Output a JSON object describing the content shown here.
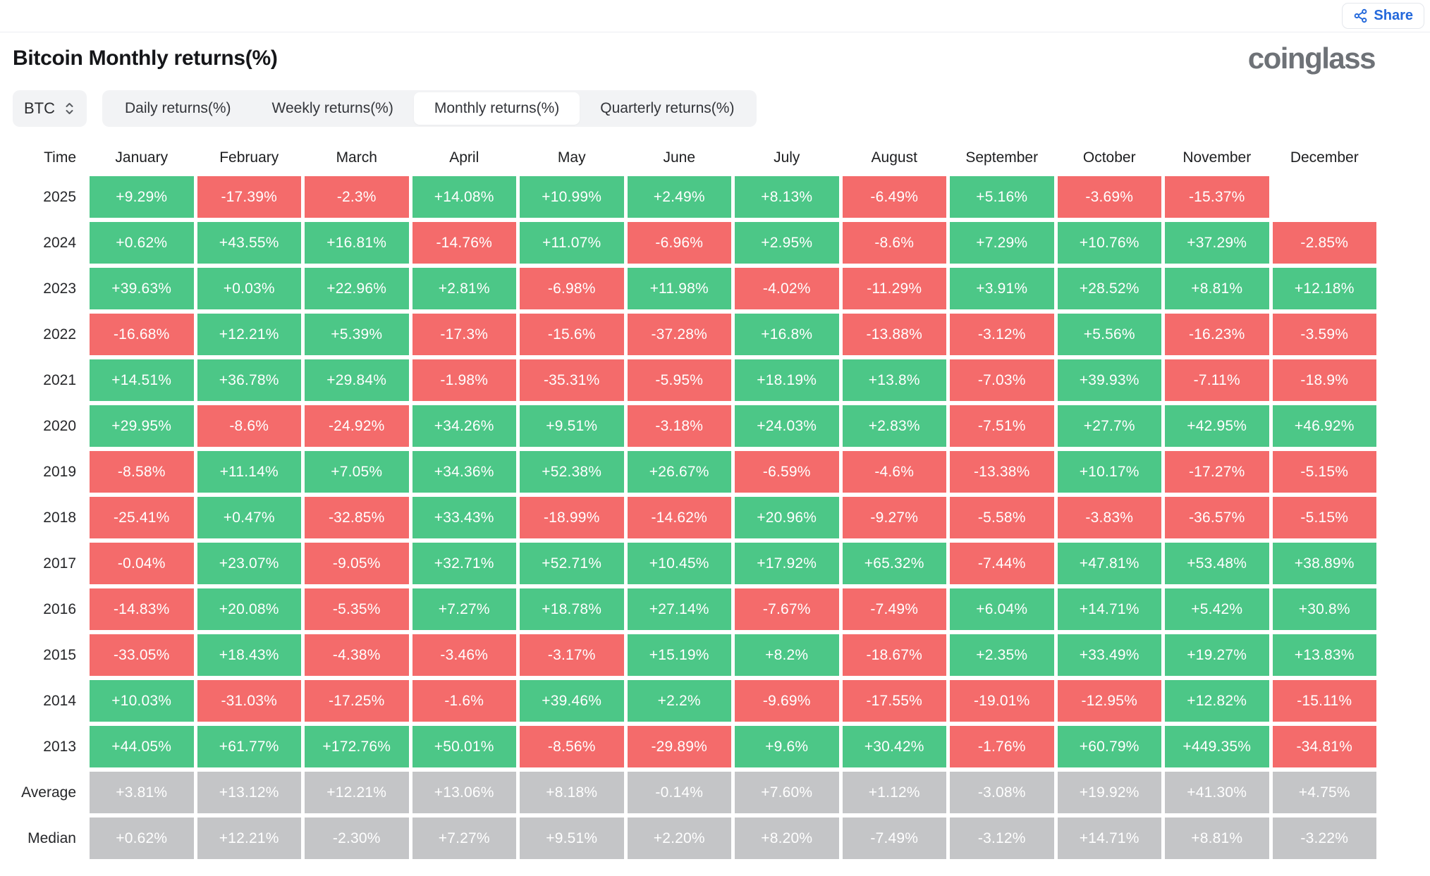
{
  "header": {
    "share_label": "Share",
    "brand": "coinglass",
    "title": "Bitcoin Monthly returns(%)"
  },
  "toolbar": {
    "symbol": "BTC",
    "tabs": [
      {
        "label": "Daily returns(%)",
        "active": false
      },
      {
        "label": "Weekly returns(%)",
        "active": false
      },
      {
        "label": "Monthly returns(%)",
        "active": true
      },
      {
        "label": "Quarterly returns(%)",
        "active": false
      }
    ]
  },
  "colors": {
    "positive": "#4cc787",
    "negative": "#f46b6b",
    "summary": "#c4c5c7",
    "accent_blue": "#2368db"
  },
  "chart_data": {
    "type": "table",
    "title": "Bitcoin Monthly returns(%)",
    "columns": [
      "Time",
      "January",
      "February",
      "March",
      "April",
      "May",
      "June",
      "July",
      "August",
      "September",
      "October",
      "November",
      "December"
    ],
    "rows": [
      {
        "label": "2025",
        "summary": false,
        "values": [
          "+9.29%",
          "-17.39%",
          "-2.3%",
          "+14.08%",
          "+10.99%",
          "+2.49%",
          "+8.13%",
          "-6.49%",
          "+5.16%",
          "-3.69%",
          "-15.37%",
          ""
        ]
      },
      {
        "label": "2024",
        "summary": false,
        "values": [
          "+0.62%",
          "+43.55%",
          "+16.81%",
          "-14.76%",
          "+11.07%",
          "-6.96%",
          "+2.95%",
          "-8.6%",
          "+7.29%",
          "+10.76%",
          "+37.29%",
          "-2.85%"
        ]
      },
      {
        "label": "2023",
        "summary": false,
        "values": [
          "+39.63%",
          "+0.03%",
          "+22.96%",
          "+2.81%",
          "-6.98%",
          "+11.98%",
          "-4.02%",
          "-11.29%",
          "+3.91%",
          "+28.52%",
          "+8.81%",
          "+12.18%"
        ]
      },
      {
        "label": "2022",
        "summary": false,
        "values": [
          "-16.68%",
          "+12.21%",
          "+5.39%",
          "-17.3%",
          "-15.6%",
          "-37.28%",
          "+16.8%",
          "-13.88%",
          "-3.12%",
          "+5.56%",
          "-16.23%",
          "-3.59%"
        ]
      },
      {
        "label": "2021",
        "summary": false,
        "values": [
          "+14.51%",
          "+36.78%",
          "+29.84%",
          "-1.98%",
          "-35.31%",
          "-5.95%",
          "+18.19%",
          "+13.8%",
          "-7.03%",
          "+39.93%",
          "-7.11%",
          "-18.9%"
        ]
      },
      {
        "label": "2020",
        "summary": false,
        "values": [
          "+29.95%",
          "-8.6%",
          "-24.92%",
          "+34.26%",
          "+9.51%",
          "-3.18%",
          "+24.03%",
          "+2.83%",
          "-7.51%",
          "+27.7%",
          "+42.95%",
          "+46.92%"
        ]
      },
      {
        "label": "2019",
        "summary": false,
        "values": [
          "-8.58%",
          "+11.14%",
          "+7.05%",
          "+34.36%",
          "+52.38%",
          "+26.67%",
          "-6.59%",
          "-4.6%",
          "-13.38%",
          "+10.17%",
          "-17.27%",
          "-5.15%"
        ]
      },
      {
        "label": "2018",
        "summary": false,
        "values": [
          "-25.41%",
          "+0.47%",
          "-32.85%",
          "+33.43%",
          "-18.99%",
          "-14.62%",
          "+20.96%",
          "-9.27%",
          "-5.58%",
          "-3.83%",
          "-36.57%",
          "-5.15%"
        ]
      },
      {
        "label": "2017",
        "summary": false,
        "values": [
          "-0.04%",
          "+23.07%",
          "-9.05%",
          "+32.71%",
          "+52.71%",
          "+10.45%",
          "+17.92%",
          "+65.32%",
          "-7.44%",
          "+47.81%",
          "+53.48%",
          "+38.89%"
        ]
      },
      {
        "label": "2016",
        "summary": false,
        "values": [
          "-14.83%",
          "+20.08%",
          "-5.35%",
          "+7.27%",
          "+18.78%",
          "+27.14%",
          "-7.67%",
          "-7.49%",
          "+6.04%",
          "+14.71%",
          "+5.42%",
          "+30.8%"
        ]
      },
      {
        "label": "2015",
        "summary": false,
        "values": [
          "-33.05%",
          "+18.43%",
          "-4.38%",
          "-3.46%",
          "-3.17%",
          "+15.19%",
          "+8.2%",
          "-18.67%",
          "+2.35%",
          "+33.49%",
          "+19.27%",
          "+13.83%"
        ]
      },
      {
        "label": "2014",
        "summary": false,
        "values": [
          "+10.03%",
          "-31.03%",
          "-17.25%",
          "-1.6%",
          "+39.46%",
          "+2.2%",
          "-9.69%",
          "-17.55%",
          "-19.01%",
          "-12.95%",
          "+12.82%",
          "-15.11%"
        ]
      },
      {
        "label": "2013",
        "summary": false,
        "values": [
          "+44.05%",
          "+61.77%",
          "+172.76%",
          "+50.01%",
          "-8.56%",
          "-29.89%",
          "+9.6%",
          "+30.42%",
          "-1.76%",
          "+60.79%",
          "+449.35%",
          "-34.81%"
        ]
      },
      {
        "label": "Average",
        "summary": true,
        "values": [
          "+3.81%",
          "+13.12%",
          "+12.21%",
          "+13.06%",
          "+8.18%",
          "-0.14%",
          "+7.60%",
          "+1.12%",
          "-3.08%",
          "+19.92%",
          "+41.30%",
          "+4.75%"
        ]
      },
      {
        "label": "Median",
        "summary": true,
        "values": [
          "+0.62%",
          "+12.21%",
          "-2.30%",
          "+7.27%",
          "+9.51%",
          "+2.20%",
          "+8.20%",
          "-7.49%",
          "-3.12%",
          "+14.71%",
          "+8.81%",
          "-3.22%"
        ]
      }
    ]
  }
}
